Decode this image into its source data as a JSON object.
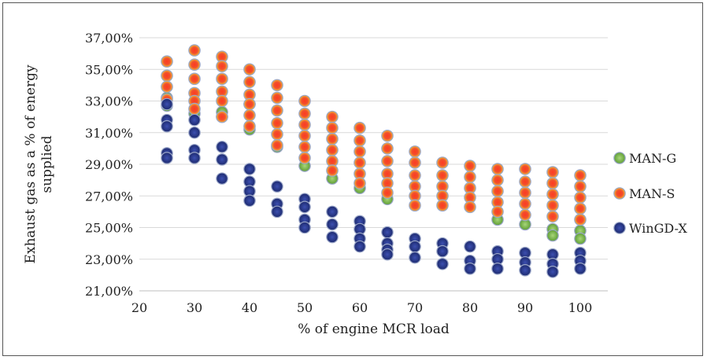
{
  "chart_data": {
    "type": "scatter",
    "title": "",
    "xlabel": "% of engine MCR load",
    "ylabel": "Exhaust gas as a % of energy supplied",
    "xlim": [
      20,
      105
    ],
    "ylim": [
      21,
      37
    ],
    "x_ticks": [
      20,
      30,
      40,
      50,
      60,
      70,
      80,
      90,
      100
    ],
    "y_ticks": [
      21,
      23,
      25,
      27,
      29,
      31,
      33,
      35,
      37
    ],
    "x_tick_labels": [
      "20",
      "30",
      "40",
      "50",
      "60",
      "70",
      "80",
      "90",
      "100"
    ],
    "y_tick_labels": [
      "21,00%",
      "23,00%",
      "25,00%",
      "27,00%",
      "29,00%",
      "31,00%",
      "33,00%",
      "35,00%",
      "37,00%"
    ],
    "grid": "horizontal",
    "legend_position": "right",
    "series": [
      {
        "name": "MAN-G",
        "color": "#7dbb4c",
        "points": [
          [
            25,
            33.2
          ],
          [
            25,
            32.7
          ],
          [
            30,
            32.2
          ],
          [
            35,
            32.3
          ],
          [
            35,
            32.0
          ],
          [
            40,
            32.8
          ],
          [
            40,
            31.2
          ],
          [
            45,
            30.1
          ],
          [
            50,
            28.9
          ],
          [
            55,
            28.1
          ],
          [
            60,
            27.5
          ],
          [
            65,
            26.8
          ],
          [
            85,
            25.5
          ],
          [
            90,
            25.2
          ],
          [
            95,
            24.9
          ],
          [
            95,
            24.5
          ],
          [
            100,
            24.8
          ],
          [
            100,
            24.3
          ]
        ]
      },
      {
        "name": "MAN-S",
        "color": "#e8432a",
        "points": [
          [
            25,
            35.5
          ],
          [
            25,
            34.6
          ],
          [
            25,
            33.9
          ],
          [
            25,
            33.1
          ],
          [
            30,
            36.2
          ],
          [
            30,
            35.3
          ],
          [
            30,
            34.4
          ],
          [
            30,
            33.5
          ],
          [
            30,
            33.0
          ],
          [
            30,
            32.5
          ],
          [
            35,
            35.8
          ],
          [
            35,
            35.2
          ],
          [
            35,
            34.4
          ],
          [
            35,
            33.6
          ],
          [
            35,
            33.0
          ],
          [
            35,
            32.0
          ],
          [
            40,
            35.0
          ],
          [
            40,
            34.2
          ],
          [
            40,
            33.4
          ],
          [
            40,
            32.8
          ],
          [
            40,
            32.1
          ],
          [
            40,
            31.4
          ],
          [
            45,
            34.0
          ],
          [
            45,
            33.2
          ],
          [
            45,
            32.4
          ],
          [
            45,
            31.6
          ],
          [
            45,
            30.9
          ],
          [
            45,
            30.2
          ],
          [
            50,
            33.0
          ],
          [
            50,
            32.2
          ],
          [
            50,
            31.5
          ],
          [
            50,
            30.8
          ],
          [
            50,
            30.1
          ],
          [
            50,
            29.4
          ],
          [
            55,
            32.0
          ],
          [
            55,
            31.3
          ],
          [
            55,
            30.6
          ],
          [
            55,
            29.9
          ],
          [
            55,
            29.2
          ],
          [
            55,
            28.6
          ],
          [
            60,
            31.3
          ],
          [
            60,
            30.5
          ],
          [
            60,
            29.8
          ],
          [
            60,
            29.1
          ],
          [
            60,
            28.4
          ],
          [
            60,
            27.8
          ],
          [
            65,
            30.8
          ],
          [
            65,
            30.0
          ],
          [
            65,
            29.2
          ],
          [
            65,
            28.4
          ],
          [
            65,
            27.8
          ],
          [
            65,
            27.2
          ],
          [
            70,
            29.8
          ],
          [
            70,
            29.1
          ],
          [
            70,
            28.3
          ],
          [
            70,
            27.6
          ],
          [
            70,
            27.0
          ],
          [
            70,
            26.4
          ],
          [
            75,
            29.1
          ],
          [
            75,
            28.3
          ],
          [
            75,
            27.6
          ],
          [
            75,
            27.0
          ],
          [
            75,
            26.4
          ],
          [
            80,
            28.9
          ],
          [
            80,
            28.2
          ],
          [
            80,
            27.5
          ],
          [
            80,
            26.9
          ],
          [
            80,
            26.3
          ],
          [
            85,
            28.7
          ],
          [
            85,
            28.0
          ],
          [
            85,
            27.3
          ],
          [
            85,
            26.6
          ],
          [
            85,
            26.0
          ],
          [
            90,
            28.7
          ],
          [
            90,
            27.9
          ],
          [
            90,
            27.2
          ],
          [
            90,
            26.5
          ],
          [
            90,
            25.8
          ],
          [
            95,
            28.5
          ],
          [
            95,
            27.8
          ],
          [
            95,
            27.1
          ],
          [
            95,
            26.4
          ],
          [
            95,
            25.7
          ],
          [
            100,
            28.3
          ],
          [
            100,
            27.6
          ],
          [
            100,
            26.9
          ],
          [
            100,
            26.2
          ],
          [
            100,
            25.5
          ]
        ]
      },
      {
        "name": "WinGD-X",
        "color": "#2a3b8f",
        "points": [
          [
            25,
            32.8
          ],
          [
            25,
            31.8
          ],
          [
            25,
            31.4
          ],
          [
            25,
            29.7
          ],
          [
            25,
            29.4
          ],
          [
            30,
            31.8
          ],
          [
            30,
            31.0
          ],
          [
            30,
            29.9
          ],
          [
            30,
            29.4
          ],
          [
            35,
            30.1
          ],
          [
            35,
            29.3
          ],
          [
            35,
            28.1
          ],
          [
            40,
            28.7
          ],
          [
            40,
            27.9
          ],
          [
            40,
            27.3
          ],
          [
            40,
            26.7
          ],
          [
            45,
            27.6
          ],
          [
            45,
            26.5
          ],
          [
            45,
            26.0
          ],
          [
            50,
            26.8
          ],
          [
            50,
            26.3
          ],
          [
            50,
            25.5
          ],
          [
            50,
            25.0
          ],
          [
            55,
            26.0
          ],
          [
            55,
            25.2
          ],
          [
            55,
            24.4
          ],
          [
            60,
            25.4
          ],
          [
            60,
            24.9
          ],
          [
            60,
            24.3
          ],
          [
            60,
            23.8
          ],
          [
            65,
            24.7
          ],
          [
            65,
            24.0
          ],
          [
            65,
            23.6
          ],
          [
            65,
            23.3
          ],
          [
            70,
            24.3
          ],
          [
            70,
            23.8
          ],
          [
            70,
            23.1
          ],
          [
            75,
            24.0
          ],
          [
            75,
            23.5
          ],
          [
            75,
            22.7
          ],
          [
            80,
            23.8
          ],
          [
            80,
            22.9
          ],
          [
            80,
            22.4
          ],
          [
            85,
            23.5
          ],
          [
            85,
            23.0
          ],
          [
            85,
            22.4
          ],
          [
            90,
            23.4
          ],
          [
            90,
            22.8
          ],
          [
            90,
            22.3
          ],
          [
            95,
            23.3
          ],
          [
            95,
            22.7
          ],
          [
            95,
            22.2
          ],
          [
            100,
            23.4
          ],
          [
            100,
            22.9
          ],
          [
            100,
            22.4
          ]
        ]
      }
    ]
  }
}
